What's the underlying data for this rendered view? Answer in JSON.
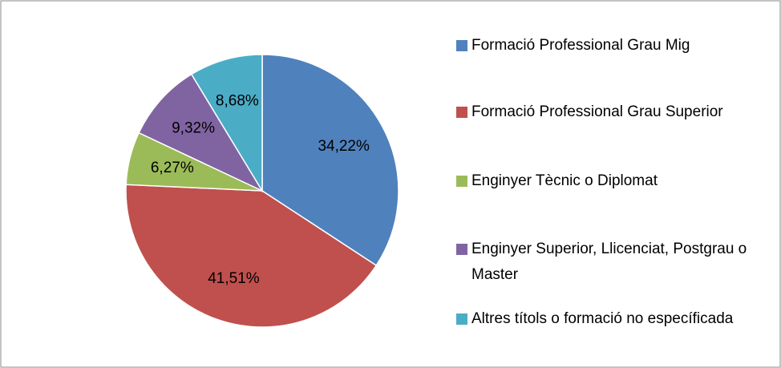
{
  "chart_data": {
    "type": "pie",
    "categories": [
      "Formació Professional Grau Mig",
      "Formació Professional Grau Superior",
      "Enginyer Tècnic o Diplomat",
      "Enginyer Superior, Llicenciat, Postgrau o Master",
      "Altres títols o formació no específicada"
    ],
    "values": [
      34.22,
      41.51,
      6.27,
      9.32,
      8.68
    ],
    "value_labels": [
      "34,22%",
      "41,51%",
      "6,27%",
      "9,32%",
      "8,68%"
    ],
    "colors": [
      "#4f81bd",
      "#c0504d",
      "#9bbb59",
      "#8064a2",
      "#4bacc6"
    ],
    "legend": "right"
  }
}
